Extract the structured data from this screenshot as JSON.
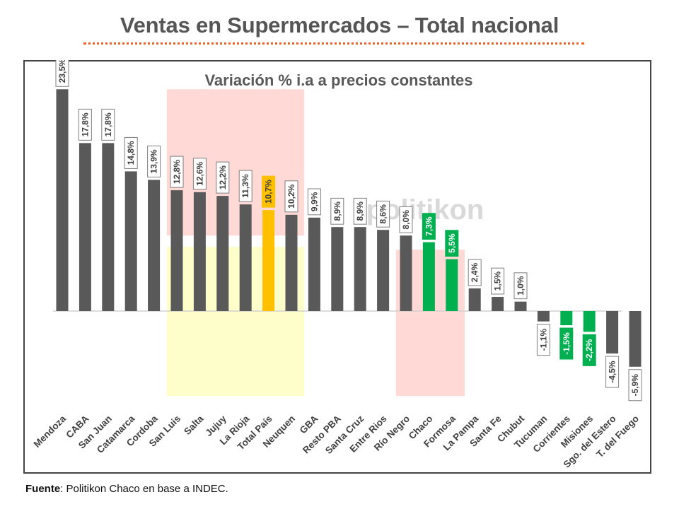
{
  "header": {
    "title": "Ventas en Supermercados – Total nacional"
  },
  "footer": {
    "source_label": "Fuente",
    "source_text": ": Politikon Chaco en base a INDEC."
  },
  "colors": {
    "default_bar": "#595959",
    "highlight_bar": "#ffc000",
    "positive_region_bar": "#00b050",
    "negative_region_bar": "#00b050",
    "shade_red": "#ffd9d6",
    "shade_yellow": "#fefecb",
    "axis": "#d0d0d0",
    "watermark": "#d9d9d9"
  },
  "chart_data": {
    "type": "bar",
    "title": "Variación % i.a a precios constantes",
    "xlabel": "",
    "ylabel": "",
    "ylim": [
      -10,
      24
    ],
    "grid": false,
    "legend": "none",
    "watermark": "politikon",
    "categories": [
      "Mendoza",
      "CABA",
      "San Juan",
      "Catamarca",
      "Cordoba",
      "San Luis",
      "Salta",
      "Jujuy",
      "La Rioja",
      "Total País",
      "Neuquen",
      "GBA",
      "Resto PBA",
      "Santa Cruz",
      "Entre Rios",
      "Río Negro",
      "Chaco",
      "Formosa",
      "La Pampa",
      "Santa Fe",
      "Chubut",
      "Tucuman",
      "Corrientes",
      "Misiones",
      "Sgo. del Estero",
      "T. del Fuego"
    ],
    "values": [
      23.5,
      17.8,
      17.8,
      14.8,
      13.9,
      12.8,
      12.6,
      12.2,
      11.3,
      10.7,
      10.2,
      9.9,
      8.9,
      8.9,
      8.6,
      8.0,
      7.3,
      5.5,
      2.4,
      1.5,
      1.0,
      -1.1,
      -1.5,
      -2.2,
      -4.5,
      -5.9
    ],
    "data_labels": [
      "23,5%",
      "17,8%",
      "17,8%",
      "14,8%",
      "13,9%",
      "12,8%",
      "12,6%",
      "12,2%",
      "11,3%",
      "10,7%",
      "10,2%",
      "9,9%",
      "8,9%",
      "8,9%",
      "8,6%",
      "8,0%",
      "7,3%",
      "5,5%",
      "2,4%",
      "1,5%",
      "1,0%",
      "-1,1%",
      "-1,5%",
      "-2,2%",
      "-4,5%",
      "-5,9%"
    ],
    "bar_colors": [
      "default",
      "default",
      "default",
      "default",
      "default",
      "default",
      "default",
      "default",
      "default",
      "highlight",
      "default",
      "default",
      "default",
      "default",
      "default",
      "default",
      "green",
      "green",
      "default",
      "default",
      "default",
      "default",
      "green",
      "green",
      "default",
      "default"
    ],
    "shaded_regions": [
      {
        "from_category": "San Luis",
        "to_category": "Neuquen",
        "y_from": 8.0,
        "y_to": 23.5,
        "color": "shade_red"
      },
      {
        "from_category": "San Luis",
        "to_category": "Neuquen",
        "y_from": -9.0,
        "y_to": 6.8,
        "color": "shade_yellow"
      },
      {
        "from_category": "Río Negro",
        "to_category": "Formosa",
        "y_from": -9.0,
        "y_to": 6.5,
        "color": "shade_red"
      }
    ]
  }
}
